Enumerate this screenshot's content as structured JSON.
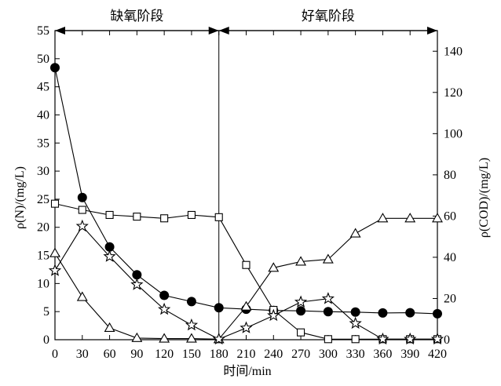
{
  "chart_data": {
    "type": "line",
    "x": [
      0,
      30,
      60,
      90,
      120,
      150,
      180,
      210,
      240,
      270,
      300,
      330,
      360,
      390,
      420
    ],
    "xlabel_prefix": "时间",
    "xlabel_unit": "/min",
    "xlim": [
      0,
      420
    ],
    "ylabel_left": "ρ(N)/(mg/L)",
    "ylim_left": [
      0,
      55
    ],
    "yticks_left": [
      0,
      5,
      10,
      15,
      20,
      25,
      30,
      35,
      40,
      45,
      50,
      55
    ],
    "ylabel_right": "ρ(COD)/(mg/L)",
    "ylim_right": [
      0,
      150
    ],
    "yticks_right": [
      0,
      20,
      40,
      60,
      80,
      100,
      120,
      140
    ],
    "phases": [
      {
        "label": "缺氧阶段",
        "x_start": 0,
        "x_end": 180
      },
      {
        "label": "好氧阶段",
        "x_start": 180,
        "x_end": 420
      }
    ],
    "grid": false,
    "series": [
      {
        "marker": "filled-circle",
        "axis": "right",
        "values": [
          132,
          69,
          45,
          31.5,
          21.5,
          18.5,
          15.5,
          14.8,
          14.2,
          14.0,
          13.6,
          13.4,
          13.0,
          13.1,
          12.6
        ]
      },
      {
        "marker": "open-square",
        "axis": "left",
        "values": [
          24.2,
          23.1,
          22.2,
          21.9,
          21.6,
          22.2,
          21.8,
          13.3,
          5.3,
          1.3,
          0.1,
          0.1,
          0.1,
          0.1,
          0.1
        ]
      },
      {
        "marker": "open-triangle",
        "axis": "left",
        "values": [
          15.4,
          7.6,
          2.1,
          0.3,
          0.2,
          0.2,
          0.1,
          5.9,
          12.8,
          13.9,
          14.3,
          18.9,
          21.6,
          21.6,
          21.6
        ]
      },
      {
        "marker": "open-star",
        "axis": "left",
        "values": [
          12.3,
          20.2,
          14.8,
          9.8,
          5.4,
          2.6,
          0.1,
          2.1,
          4.3,
          6.7,
          7.3,
          2.9,
          0.1,
          0.1,
          0.1
        ]
      }
    ]
  }
}
